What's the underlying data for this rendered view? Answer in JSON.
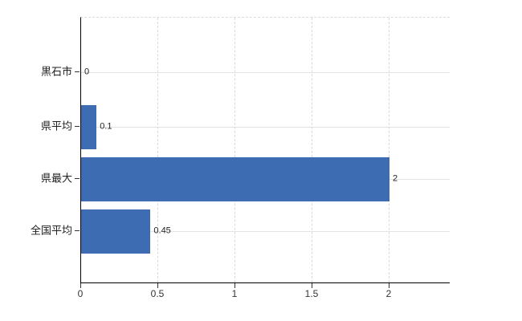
{
  "chart_data": {
    "type": "bar",
    "orientation": "horizontal",
    "title": "",
    "xlabel": "",
    "ylabel": "",
    "legend": "none",
    "categories": [
      "黒石市",
      "県平均",
      "県最大",
      "全国平均"
    ],
    "values": [
      0,
      0.1,
      2,
      0.45
    ],
    "data_labels": [
      "0",
      "0.1",
      "2",
      "0.45"
    ],
    "x_ticks": [
      {
        "label": "0",
        "value": 0
      },
      {
        "label": "0.5",
        "value": 0.5
      },
      {
        "label": "1",
        "value": 1
      },
      {
        "label": "1.5",
        "value": 1.5
      },
      {
        "label": "2",
        "value": 2
      }
    ],
    "xlim": [
      0,
      2.4
    ],
    "grid": {
      "horizontal": "solid",
      "vertical": "dashed",
      "top_border": "dashed"
    },
    "colors": {
      "bar": "#3d6cb3",
      "solid_gridline": "#e2e6e2",
      "dashed_gridline": "#d9d9d9",
      "axis": "#000000",
      "text": "#222222",
      "background": "#ffffff"
    }
  }
}
